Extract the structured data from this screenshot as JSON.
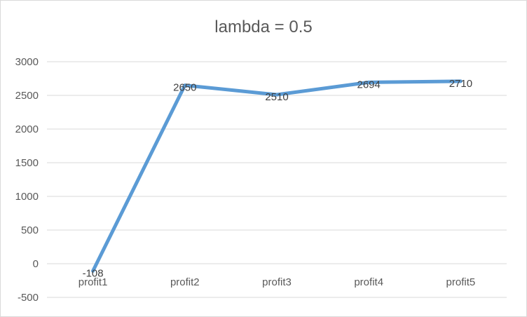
{
  "chart_data": {
    "type": "line",
    "title": "lambda = 0.5",
    "categories": [
      "profit1",
      "profit2",
      "profit3",
      "profit4",
      "profit5"
    ],
    "series": [
      {
        "values": [
          -108,
          2650,
          2510,
          2694,
          2710
        ],
        "color": "#5b9bd5",
        "data_labels": [
          "-108",
          "2650",
          "2510",
          "2694",
          "2710"
        ]
      }
    ],
    "ylim": [
      -500,
      3000
    ],
    "yticks": [
      -500,
      0,
      500,
      1000,
      1500,
      2000,
      2500,
      3000
    ],
    "ytick_labels": [
      "-500",
      "0",
      "500",
      "1000",
      "1500",
      "2000",
      "2500",
      "3000"
    ],
    "grid": true,
    "legend": "none",
    "xlabel": "",
    "ylabel": ""
  }
}
